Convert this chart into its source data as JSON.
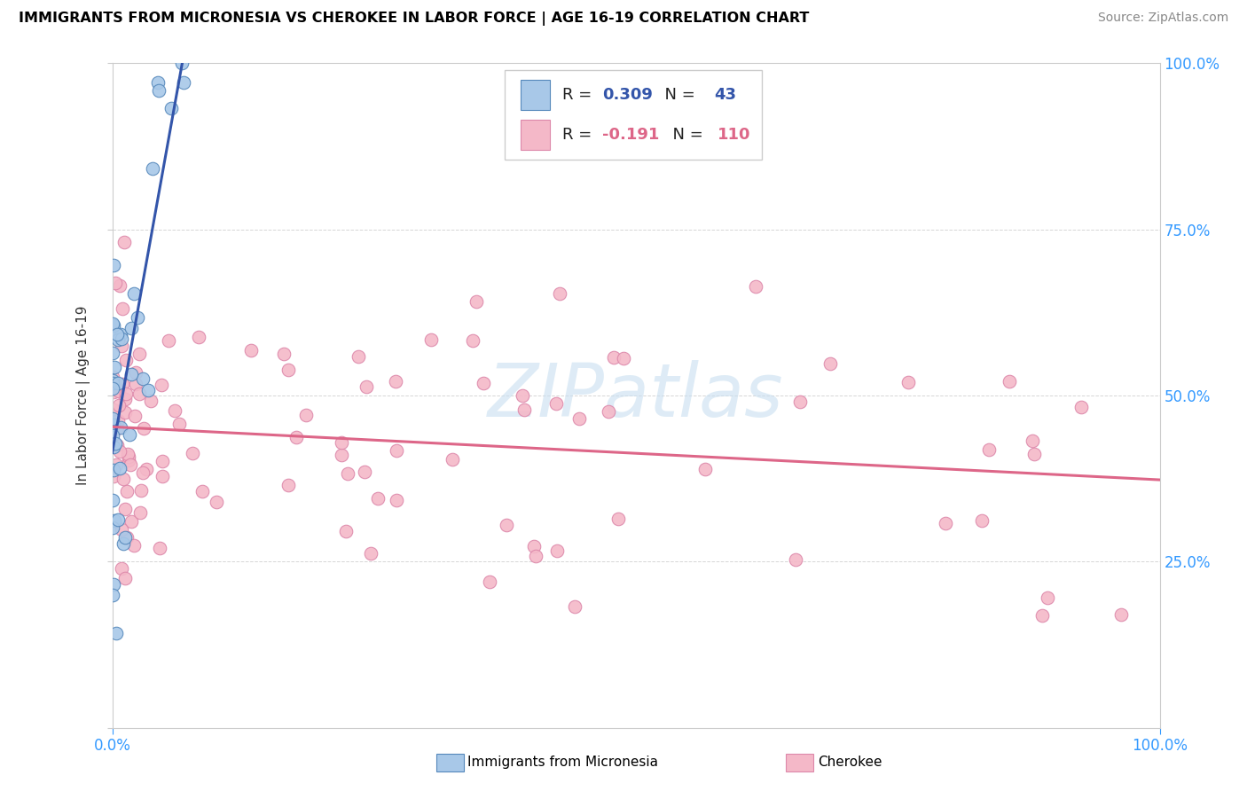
{
  "title": "IMMIGRANTS FROM MICRONESIA VS CHEROKEE IN LABOR FORCE | AGE 16-19 CORRELATION CHART",
  "source": "Source: ZipAtlas.com",
  "ylabel": "In Labor Force | Age 16-19",
  "micronesia_color": "#a8c8e8",
  "cherokee_color": "#f4b8c8",
  "micronesia_edge": "#5588bb",
  "cherokee_edge": "#dd88aa",
  "micronesia_line_color": "#3355aa",
  "cherokee_line_color": "#dd6688",
  "R_micronesia": 0.309,
  "N_micronesia": 43,
  "R_cherokee": -0.191,
  "N_cherokee": 110,
  "watermark_color": "#c8dff0",
  "mic_seed": 42,
  "cher_seed": 7
}
